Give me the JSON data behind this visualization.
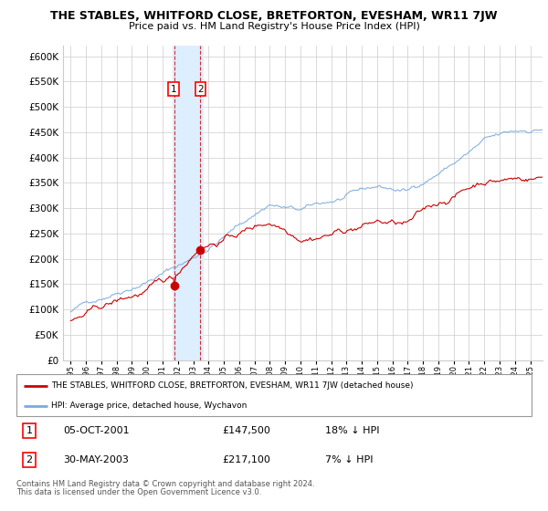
{
  "title": "THE STABLES, WHITFORD CLOSE, BRETFORTON, EVESHAM, WR11 7JW",
  "subtitle": "Price paid vs. HM Land Registry's House Price Index (HPI)",
  "legend_line1": "THE STABLES, WHITFORD CLOSE, BRETFORTON, EVESHAM, WR11 7JW (detached house)",
  "legend_line2": "HPI: Average price, detached house, Wychavon",
  "transactions": [
    {
      "num": 1,
      "date": "05-OCT-2001",
      "price": "£147,500",
      "hpi": "18% ↓ HPI"
    },
    {
      "num": 2,
      "date": "30-MAY-2003",
      "price": "£217,100",
      "hpi": "7% ↓ HPI"
    }
  ],
  "footnote1": "Contains HM Land Registry data © Crown copyright and database right 2024.",
  "footnote2": "This data is licensed under the Open Government Licence v3.0.",
  "red_line_color": "#cc0000",
  "blue_line_color": "#7aaadd",
  "highlight_color": "#ddeeff",
  "grid_color": "#cccccc",
  "background_color": "#ffffff",
  "sale1_x": 2001.75,
  "sale2_x": 2003.42,
  "sale1_y": 147500,
  "sale2_y": 217100,
  "highlight_x_start": 2001.67,
  "highlight_x_end": 2003.6,
  "xlim_left": 1994.5,
  "xlim_right": 2025.8,
  "ylim_top": 620000,
  "yticks": [
    0,
    50000,
    100000,
    150000,
    200000,
    250000,
    300000,
    350000,
    400000,
    450000,
    500000,
    550000,
    600000
  ]
}
